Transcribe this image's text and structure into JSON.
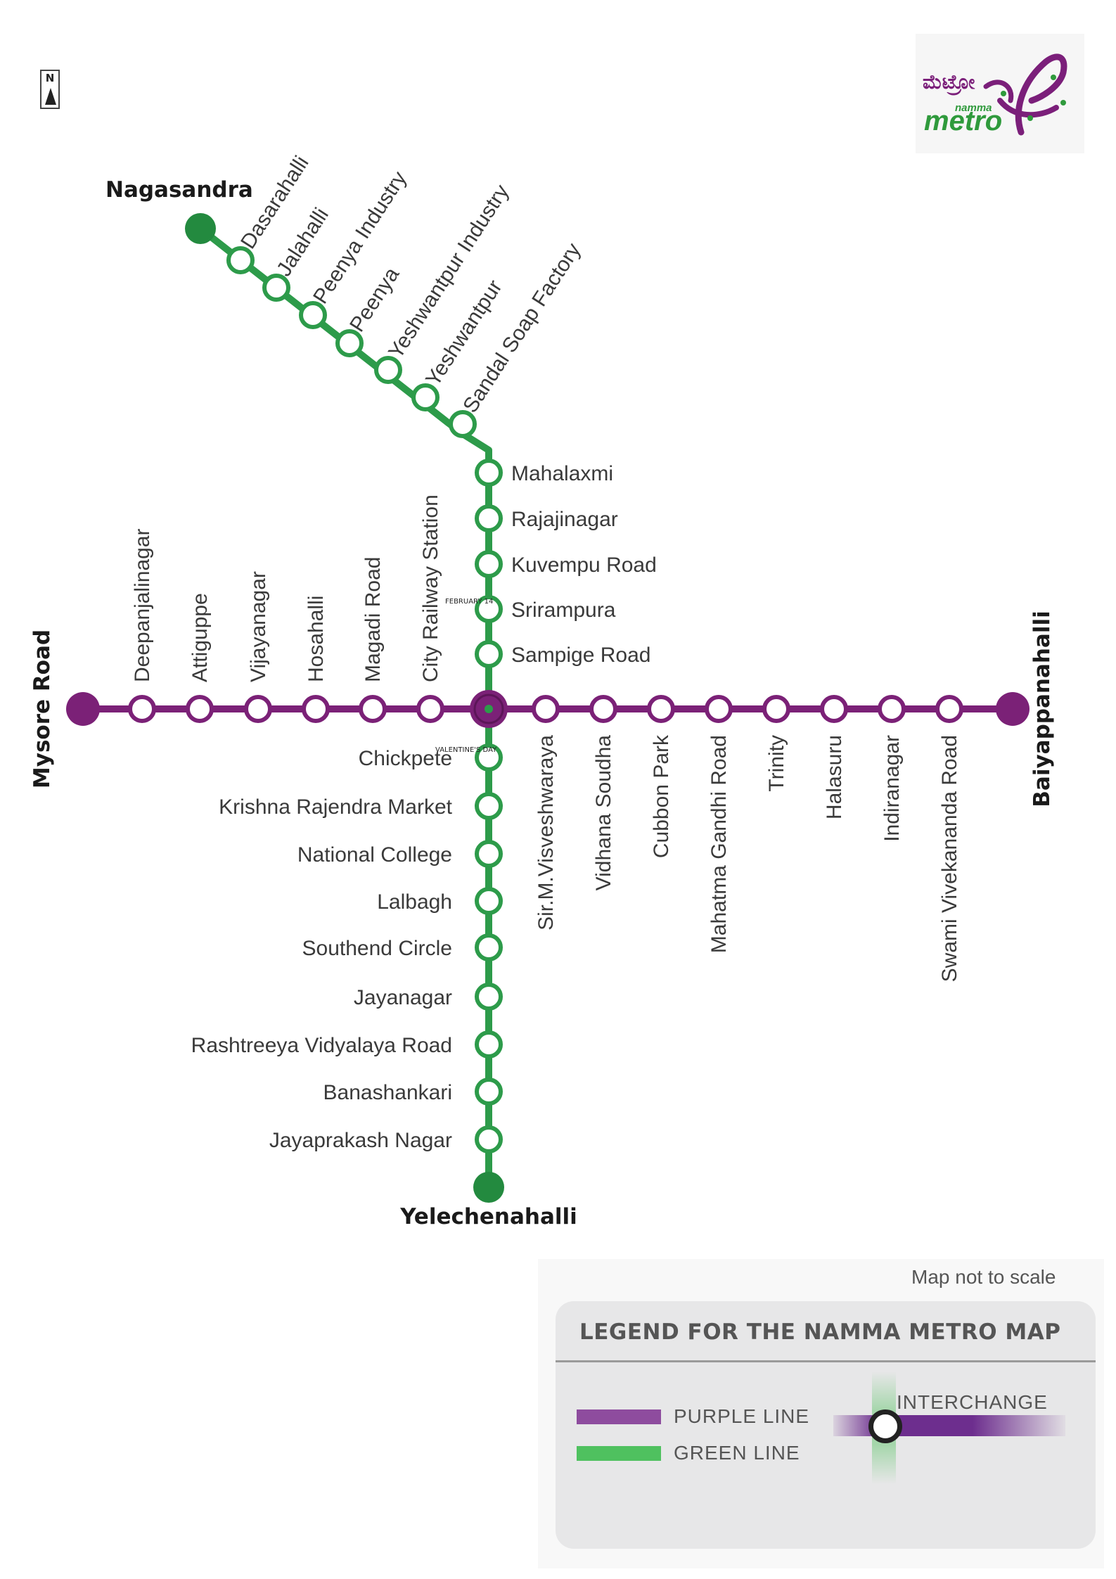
{
  "north": {
    "label": "N"
  },
  "logo": {
    "kannada": "ಮೆಟ್ರೋ",
    "namma": "namma",
    "metro": "metro"
  },
  "green_line": {
    "north_terminal": "Nagasandra",
    "diagonal_stations": [
      "Dasarahalli",
      "Jalahalli",
      "Peenya Industry",
      "Peenya",
      "Yeshwantpur Industry",
      "Yeshwantpur",
      "Sandal Soap Factory"
    ],
    "north_stations": [
      "Mahalaxmi",
      "Rajajinagar",
      "Kuvempu Road",
      "Srirampura",
      "Sampige Road"
    ],
    "south_stations": [
      "Chickpete",
      "Krishna Rajendra Market",
      "National College",
      "Lalbagh",
      "Southend Circle",
      "Jayanagar",
      "Rashtreeya Vidyalaya Road",
      "Banashankari",
      "Jayaprakash Nagar"
    ],
    "south_terminal": "Yelechenahalli",
    "color": "#2d9b4a"
  },
  "purple_line": {
    "west_terminal": "Mysore Road",
    "west_stations": [
      "Deepanjalinagar",
      "Attiguppe",
      "Vijayanagar",
      "Hosahalli",
      "Magadi Road",
      "City Railway Station"
    ],
    "east_stations": [
      "Sir.M.Visveshwaraya",
      "Vidhana Soudha",
      "Cubbon Park",
      "Mahatma Gandhi Road",
      "Trinity",
      "Halasuru",
      "Indiranagar",
      "Swami Vivekananda Road"
    ],
    "east_terminal": "Baiyappanahalli",
    "color": "#7b2177"
  },
  "overlay_text": {
    "top": "FEBRUARY 14",
    "bottom": "VALENTINE'S DAY"
  },
  "note": "Map not to scale",
  "legend": {
    "title": "LEGEND FOR THE NAMMA METRO MAP",
    "purple_label": "PURPLE LINE",
    "green_label": "GREEN LINE",
    "interchange_label": "INTERCHANGE",
    "purple_color": "#8e4c9e",
    "green_color": "#4fc15f"
  }
}
